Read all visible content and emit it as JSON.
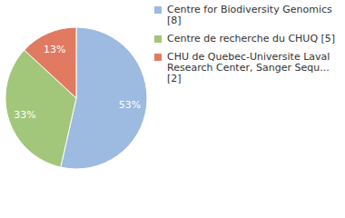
{
  "chart_data": {
    "type": "pie",
    "categories": [
      "Centre for Biodiversity Genomics [8]",
      "Centre de recherche du CHUQ [5]",
      "CHU de Quebec-Universite Laval Research Center, Sanger Sequ... [2]"
    ],
    "values": [
      53,
      33,
      13
    ],
    "value_labels": [
      "53%",
      "33%",
      "13%"
    ],
    "colors": [
      "#9dbae0",
      "#a2c67a",
      "#e07b62"
    ],
    "data_labels": true,
    "legend": "right"
  }
}
